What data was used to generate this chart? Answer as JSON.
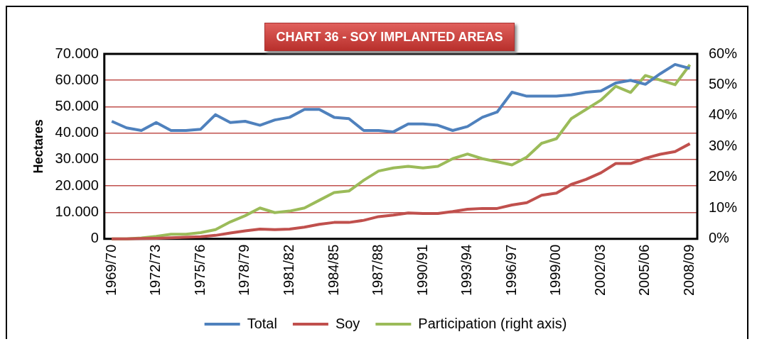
{
  "chart_data": {
    "type": "line",
    "title": "CHART 36 - SOY IMPLANTED AREAS",
    "ylabel": "Hectares",
    "categories": [
      "1969/70",
      null,
      null,
      "1972/73",
      null,
      null,
      "1975/76",
      null,
      null,
      "1978/79",
      null,
      null,
      "1981/82",
      null,
      null,
      "1984/85",
      null,
      null,
      "1987/88",
      null,
      null,
      "1990/91",
      null,
      null,
      "1993/94",
      null,
      null,
      "1996/97",
      null,
      null,
      "1999/00",
      null,
      null,
      "2002/03",
      null,
      null,
      "2005/06",
      null,
      null,
      "2008/09"
    ],
    "series": [
      {
        "name": "Total",
        "color": "#4f81bd",
        "values": [
          44500,
          42000,
          41000,
          44000,
          41000,
          41000,
          41500,
          47000,
          44000,
          44500,
          43000,
          45000,
          46000,
          49000,
          49000,
          46000,
          45500,
          41000,
          41000,
          40500,
          43500,
          43500,
          43000,
          41000,
          42500,
          46000,
          48000,
          55500,
          54000,
          54000,
          54000,
          54500,
          55500,
          56000,
          59000,
          60000,
          58500,
          62500,
          66000,
          64500
        ]
      },
      {
        "name": "Soy",
        "color": "#c0504d",
        "values": [
          0,
          0,
          100,
          200,
          400,
          600,
          800,
          1300,
          2200,
          3000,
          3700,
          3500,
          3700,
          4400,
          5500,
          6200,
          6200,
          7000,
          8400,
          9000,
          9800,
          9600,
          9600,
          10300,
          11200,
          11500,
          11500,
          12800,
          13700,
          16500,
          17300,
          20600,
          22500,
          25000,
          28500,
          28500,
          30500,
          32000,
          33000,
          36000
        ]
      },
      {
        "name": "Participation (right axis)",
        "color": "#9bbb59",
        "axis": "y2",
        "values": [
          0,
          0,
          0.3,
          0.8,
          1.5,
          1.5,
          2,
          3,
          5.5,
          7.5,
          10,
          8.5,
          9,
          10,
          12.5,
          15,
          15.5,
          19,
          22,
          23,
          23.5,
          23,
          23.5,
          26,
          27.5,
          26,
          25,
          24,
          26.5,
          31,
          32.5,
          39,
          42,
          45,
          49.5,
          47.5,
          53,
          51.5,
          50,
          56.5
        ]
      }
    ],
    "ylim": [
      0,
      70000
    ],
    "yticks": [
      {
        "value": 0,
        "label": "0"
      },
      {
        "value": 10000,
        "label": "10.000"
      },
      {
        "value": 20000,
        "label": "20.000"
      },
      {
        "value": 30000,
        "label": "30.000"
      },
      {
        "value": 40000,
        "label": "40.000"
      },
      {
        "value": 50000,
        "label": "50.000"
      },
      {
        "value": 60000,
        "label": "60.000"
      },
      {
        "value": 70000,
        "label": "70.000"
      }
    ],
    "y2lim": [
      0,
      60
    ],
    "y2ticks": [
      {
        "value": 0,
        "label": "0%"
      },
      {
        "value": 10,
        "label": "10%"
      },
      {
        "value": 20,
        "label": "20%"
      },
      {
        "value": 30,
        "label": "30%"
      },
      {
        "value": 40,
        "label": "40%"
      },
      {
        "value": 50,
        "label": "50%"
      },
      {
        "value": 60,
        "label": "60%"
      }
    ],
    "grid": "y",
    "legend": "bottom",
    "marker": "none",
    "line_style": "solid"
  }
}
